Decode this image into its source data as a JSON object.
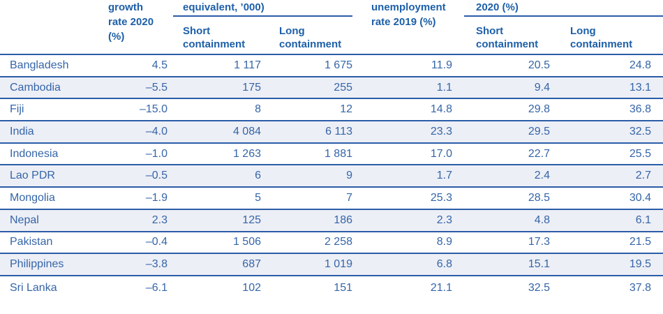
{
  "header": {
    "country": "",
    "growth": {
      "line1": "growth",
      "line2": "rate 2020",
      "line3": "(%)"
    },
    "group1": {
      "label": "equivalent, ’000)",
      "sub1": "Short containment",
      "sub2": "Long containment"
    },
    "unemployment": {
      "line1": "unemployment",
      "line2": "rate 2019 (%)"
    },
    "group2": {
      "label": "2020 (%)",
      "sub1": "Short containment",
      "sub2": "Long containment"
    }
  },
  "rows": [
    {
      "country": "Bangladesh",
      "v1": "4.5",
      "v2": "1 117",
      "v3": "1 675",
      "v4": "11.9",
      "v5": "20.5",
      "v6": "24.8"
    },
    {
      "country": "Cambodia",
      "v1": "–5.5",
      "v2": "175",
      "v3": "255",
      "v4": "1.1",
      "v5": "9.4",
      "v6": "13.1"
    },
    {
      "country": "Fiji",
      "v1": "–15.0",
      "v2": "8",
      "v3": "12",
      "v4": "14.8",
      "v5": "29.8",
      "v6": "36.8"
    },
    {
      "country": "India",
      "v1": "–4.0",
      "v2": "4 084",
      "v3": "6 113",
      "v4": "23.3",
      "v5": "29.5",
      "v6": "32.5"
    },
    {
      "country": "Indonesia",
      "v1": "–1.0",
      "v2": "1 263",
      "v3": "1 881",
      "v4": "17.0",
      "v5": "22.7",
      "v6": "25.5"
    },
    {
      "country": "Lao PDR",
      "v1": "–0.5",
      "v2": "6",
      "v3": "9",
      "v4": "1.7",
      "v5": "2.4",
      "v6": "2.7"
    },
    {
      "country": "Mongolia",
      "v1": "–1.9",
      "v2": "5",
      "v3": "7",
      "v4": "25.3",
      "v5": "28.5",
      "v6": "30.4"
    },
    {
      "country": "Nepal",
      "v1": "2.3",
      "v2": "125",
      "v3": "186",
      "v4": "2.3",
      "v5": "4.8",
      "v6": "6.1"
    },
    {
      "country": "Pakistan",
      "v1": "–0.4",
      "v2": "1 506",
      "v3": "2 258",
      "v4": "8.9",
      "v5": "17.3",
      "v6": "21.5"
    },
    {
      "country": "Philippines",
      "v1": "–3.8",
      "v2": "687",
      "v3": "1 019",
      "v4": "6.8",
      "v5": "15.1",
      "v6": "19.5"
    },
    {
      "country": "Sri Lanka",
      "v1": "–6.1",
      "v2": "102",
      "v3": "151",
      "v4": "21.1",
      "v5": "32.5",
      "v6": "37.8"
    }
  ],
  "colors": {
    "header_text": "#1d5fa8",
    "body_text": "#3565a8",
    "rule": "#2b5ca7",
    "alt_row_bg": "#edeff6"
  }
}
